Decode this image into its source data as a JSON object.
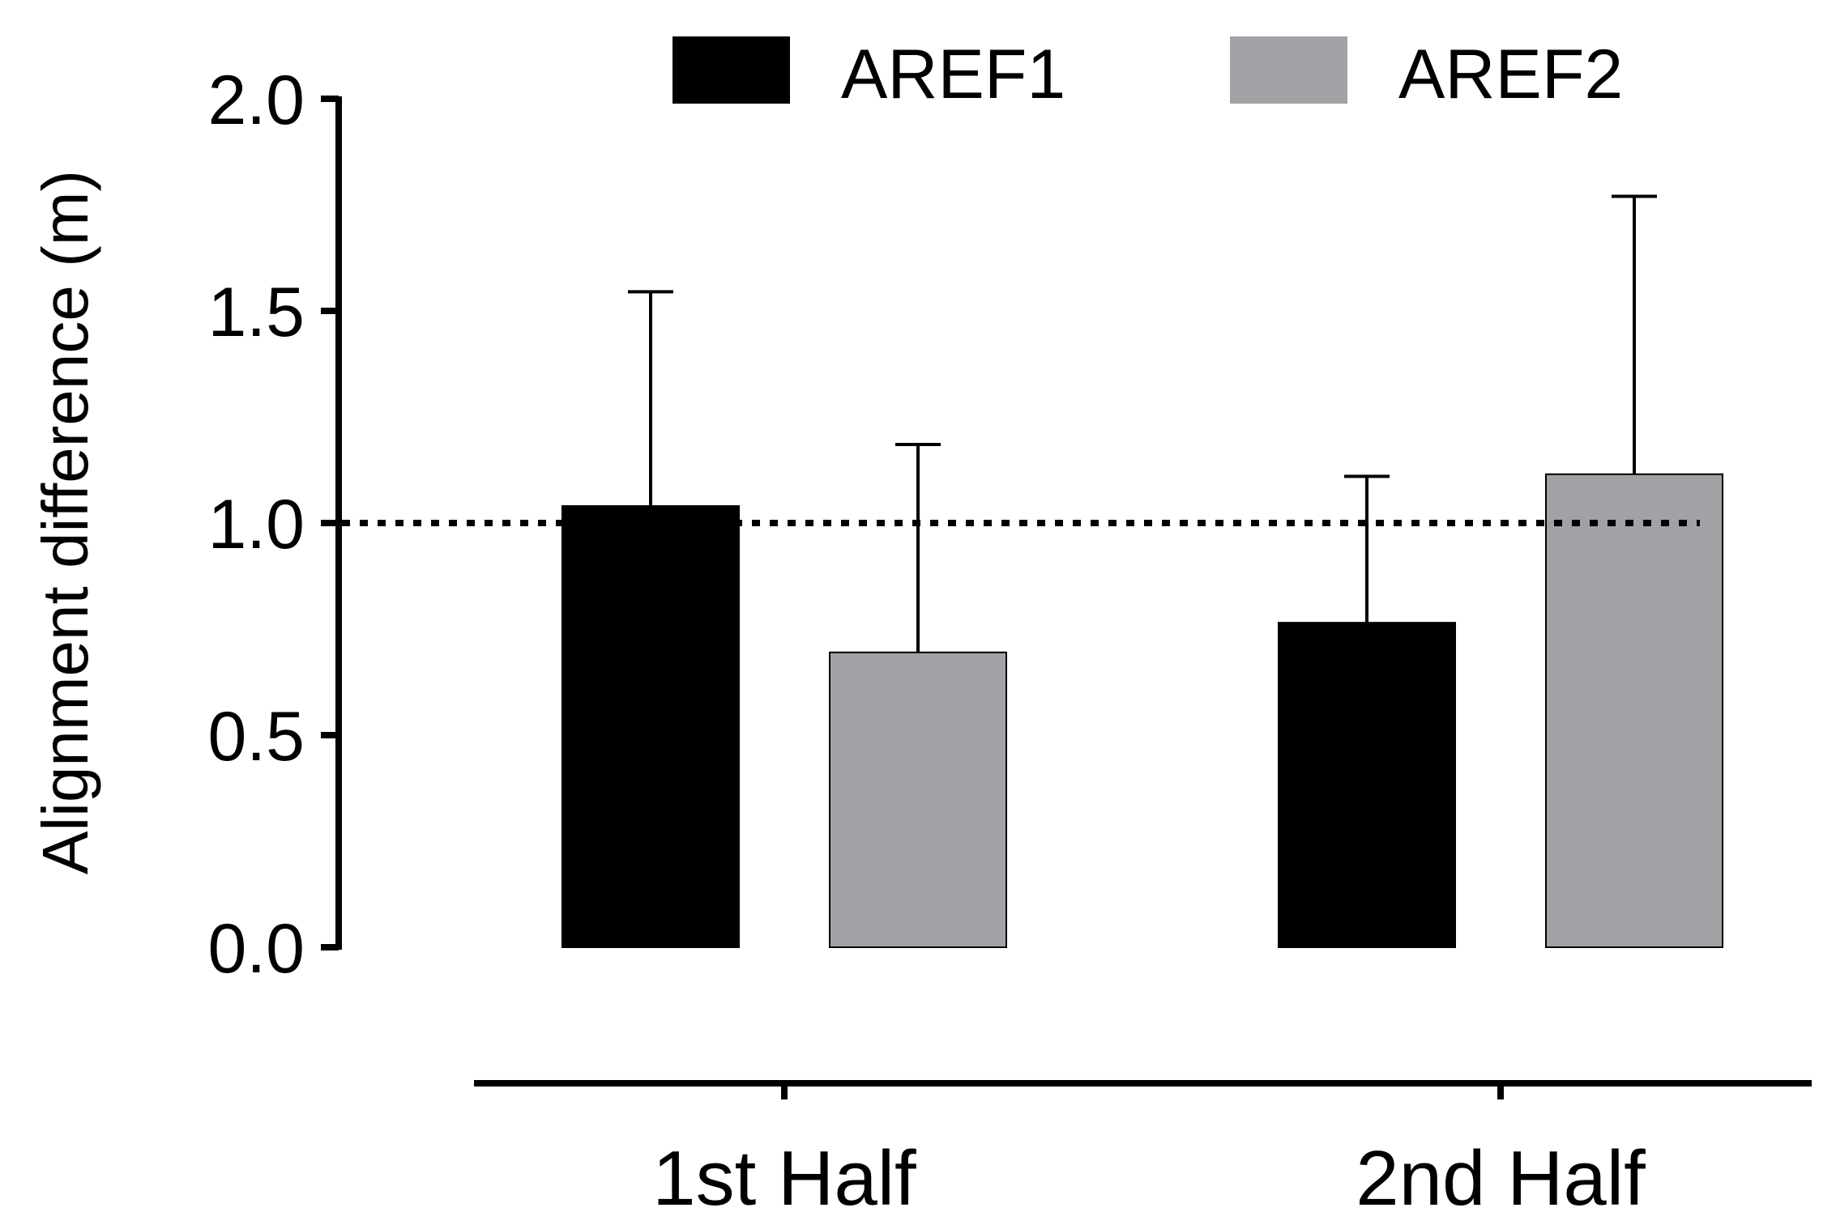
{
  "chart_data": {
    "type": "bar",
    "title": "",
    "xlabel": "",
    "ylabel": "Alignment difference (m)",
    "categories": [
      "1st Half",
      "2nd Half"
    ],
    "series": [
      {
        "name": "AREF1",
        "color": "#000000",
        "values": [
          1.04,
          0.765
        ],
        "error": [
          0.505,
          0.345
        ]
      },
      {
        "name": "AREF2",
        "color": "#a2a1a5",
        "values": [
          0.695,
          1.115
        ],
        "error": [
          0.49,
          0.655
        ]
      }
    ],
    "ylim": [
      0.0,
      2.0
    ],
    "yticks": [
      "0.0",
      "0.5",
      "1.0",
      "1.5",
      "2.0"
    ],
    "reference_line": {
      "y": 1.0,
      "style": "dotted"
    },
    "grid": false,
    "legend": "top"
  }
}
